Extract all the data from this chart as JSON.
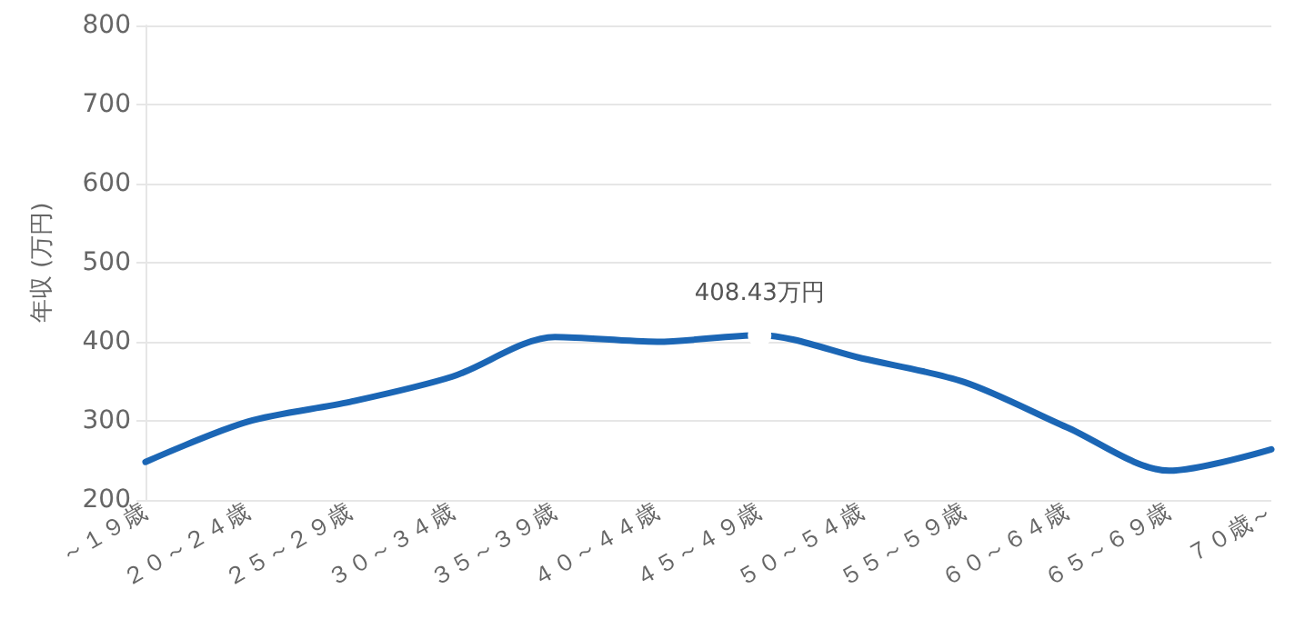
{
  "chart_data": {
    "type": "line",
    "ylabel": "年収 (万円)",
    "categories": [
      "～１９歳",
      "２０～２４歳",
      "２５～２９歳",
      "３０～３４歳",
      "３５～３９歳",
      "４０～４４歳",
      "４５～４９歳",
      "５０～５４歳",
      "５５～５９歳",
      "６０～６４歳",
      "６５～６９歳",
      "７０歳～"
    ],
    "series": [
      {
        "color": "#1b66b5",
        "values": [
          248,
          299,
          324,
          356,
          406,
          400,
          408.43,
          379,
          349,
          292,
          237,
          264
        ],
        "value_labels": [
          null,
          null,
          null,
          null,
          null,
          null,
          "408.43万円",
          null,
          null,
          null,
          null,
          null
        ]
      }
    ],
    "ylim": [
      200,
      800
    ],
    "yticks": [
      200,
      300,
      400,
      500,
      600,
      700,
      800
    ],
    "grid": "y",
    "marker": "none",
    "line_style": "solid"
  }
}
